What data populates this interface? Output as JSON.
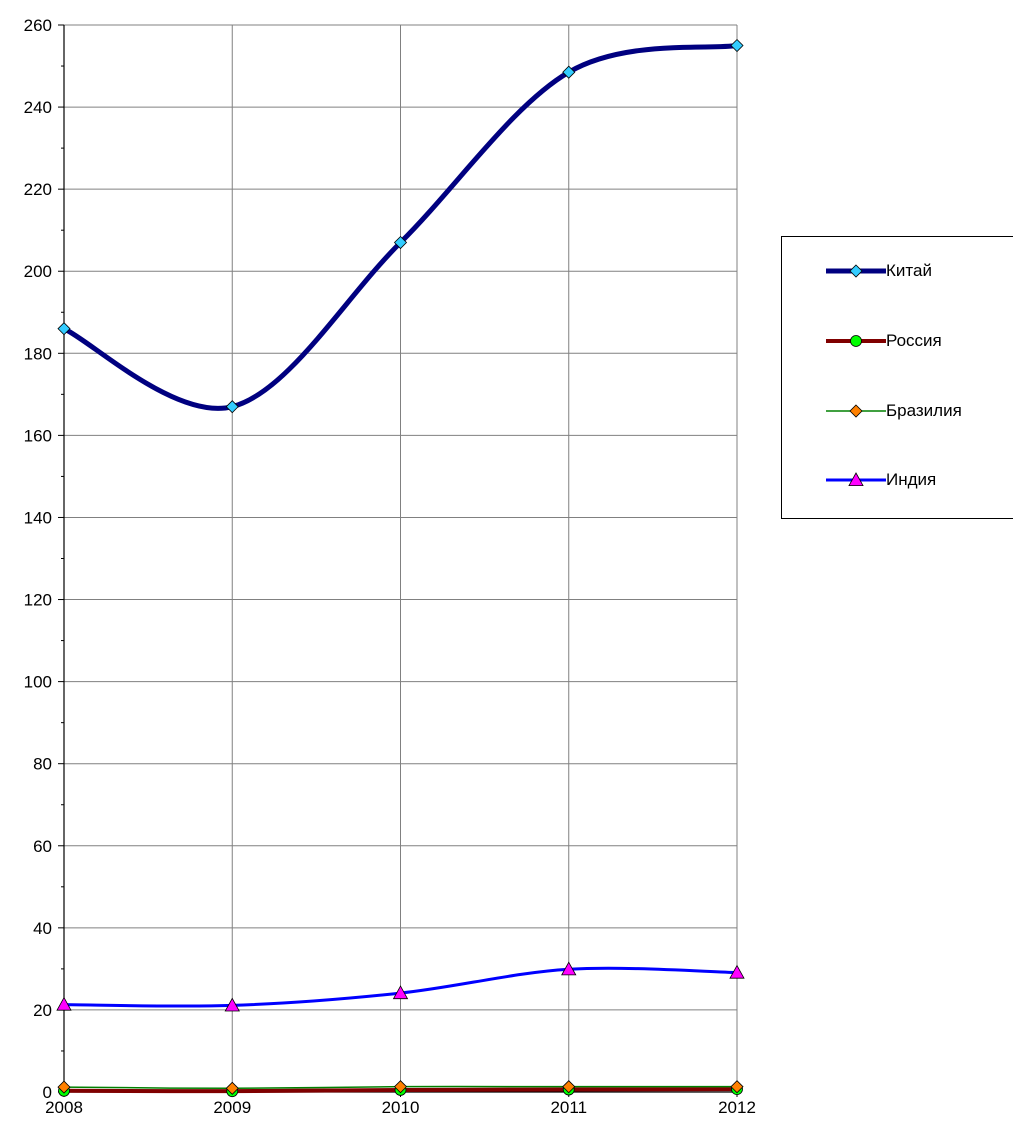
{
  "chart_data": {
    "type": "line",
    "title": "",
    "xlabel": "",
    "ylabel": "",
    "categories": [
      "2008",
      "2009",
      "2010",
      "2011",
      "2012"
    ],
    "ylim": [
      0,
      260
    ],
    "yticks": [
      "0",
      "20",
      "40",
      "60",
      "80",
      "100",
      "120",
      "140",
      "160",
      "180",
      "200",
      "220",
      "240",
      "260"
    ],
    "grid": true,
    "legend_position": "right",
    "series": [
      {
        "name": "Китай",
        "values": [
          186,
          167,
          207,
          248.5,
          255
        ],
        "color": "#000080",
        "marker": "diamond",
        "marker_color": "#33ccff"
      },
      {
        "name": "Россия",
        "values": [
          0.3,
          0.2,
          0.5,
          0.6,
          0.7
        ],
        "color": "#800000",
        "marker": "circle",
        "marker_color": "#00ff00"
      },
      {
        "name": "Бразилия",
        "values": [
          1.2,
          0.9,
          1.3,
          1.3,
          1.3
        ],
        "color": "#008000",
        "marker": "diamond",
        "marker_color": "#ff8000"
      },
      {
        "name": "Индия",
        "values": [
          21.3,
          21.1,
          24.1,
          29.9,
          29.1
        ],
        "color": "#0000ff",
        "marker": "triangle",
        "marker_color": "#ff00ff"
      }
    ]
  }
}
